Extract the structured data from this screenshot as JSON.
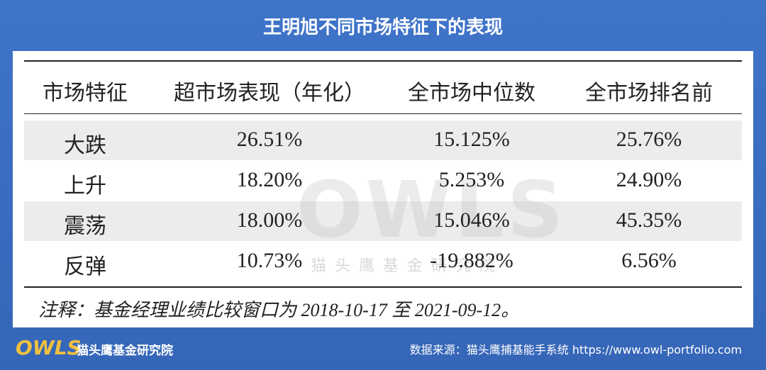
{
  "header": {
    "title": "王明旭不同市场特征下的表现"
  },
  "table": {
    "columns": [
      "市场特征",
      "超市场表现（年化）",
      "全市场中位数",
      "全市场排名前"
    ],
    "rows": [
      [
        "大跌",
        "26.51%",
        "15.125%",
        "25.76%"
      ],
      [
        "上升",
        "18.20%",
        "5.253%",
        "24.90%"
      ],
      [
        "震荡",
        "18.00%",
        "15.046%",
        "45.35%"
      ],
      [
        "反弹",
        "10.73%",
        "-19.882%",
        "6.56%"
      ]
    ]
  },
  "note": "注释：基金经理业绩比较窗口为 2018-10-17 至 2021-09-12。",
  "watermark": {
    "logo": "OWLS",
    "name": "猫头鹰基金研究院"
  },
  "footer": {
    "logo": "OWLS",
    "org": "猫头鹰基金研究院",
    "source": "数据来源：猫头鹰捕基能手系统  https://www.owl-portfolio.com"
  }
}
